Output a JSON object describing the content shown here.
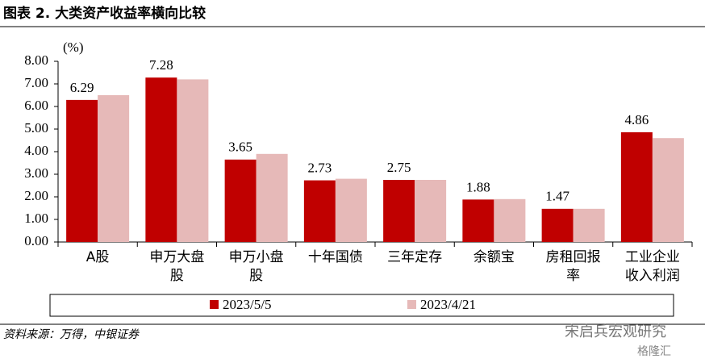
{
  "chart_data": {
    "type": "bar",
    "title": "图表 2.  大类资产收益率横向比较",
    "y_unit": "(%)",
    "categories": [
      "A股",
      "申万大盘股",
      "申万小盘股",
      "十年国债",
      "三年定存",
      "余额宝",
      "房租回报率",
      "工业企业收入利润"
    ],
    "series": [
      {
        "name": "2023/5/5",
        "color": "#C00000",
        "values": [
          6.29,
          7.28,
          3.65,
          2.73,
          2.75,
          1.88,
          1.47,
          4.86
        ]
      },
      {
        "name": "2023/4/21",
        "color": "#E6B9B8",
        "values": [
          6.5,
          7.2,
          3.9,
          2.8,
          2.75,
          1.9,
          1.47,
          4.6
        ]
      }
    ],
    "ylim": [
      0,
      8
    ],
    "yticks": [
      {
        "value": 0,
        "label": "0.00"
      },
      {
        "value": 1,
        "label": "1.00"
      },
      {
        "value": 2,
        "label": "2.00"
      },
      {
        "value": 3,
        "label": "3.00"
      },
      {
        "value": 4,
        "label": "4.00"
      },
      {
        "value": 5,
        "label": "5.00"
      },
      {
        "value": 6,
        "label": "6.00"
      },
      {
        "value": 7,
        "label": "7.00"
      },
      {
        "value": 8,
        "label": "8.00"
      }
    ],
    "labeled_series": 0,
    "source": "资料来源：万得，中银证券",
    "watermark": "宋启兵宏观研究",
    "watermark2": "格隆汇"
  }
}
